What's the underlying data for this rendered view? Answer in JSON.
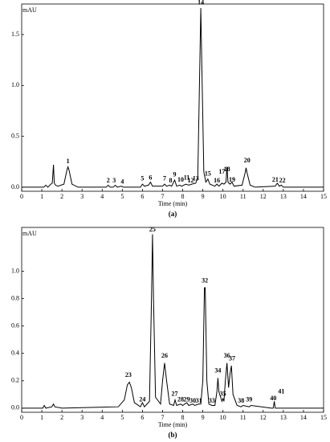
{
  "chart_data": [
    {
      "type": "line",
      "ylabel": "mAU",
      "xlabel": "Time (min)",
      "caption": "(a)",
      "color": "#000000",
      "xlim": [
        0,
        15
      ],
      "ylim": [
        -0.04,
        1.8
      ],
      "xticks": [
        0,
        1,
        2,
        3,
        4,
        5,
        6,
        7,
        8,
        9,
        10,
        11,
        12,
        13,
        14,
        15
      ],
      "yticks": [
        {
          "value": 0,
          "label": "0.0"
        },
        0.5,
        {
          "value": 1,
          "label": "1.0"
        },
        1.5
      ],
      "x": [
        0,
        1.1,
        1.2,
        1.3,
        1.45,
        1.52,
        1.58,
        1.62,
        1.68,
        1.8,
        2.1,
        2.25,
        2.3,
        2.35,
        2.5,
        2.8,
        4.2,
        4.3,
        4.4,
        4.55,
        4.65,
        4.75,
        4.95,
        5.05,
        5.9,
        6.0,
        6.1,
        6.3,
        6.4,
        6.5,
        7.0,
        7.1,
        7.2,
        7.35,
        7.45,
        7.6,
        7.7,
        7.85,
        7.95,
        8.15,
        8.3,
        8.45,
        8.65,
        8.75,
        8.85,
        8.9,
        8.95,
        9.05,
        9.15,
        9.25,
        9.35,
        9.6,
        9.7,
        9.8,
        9.95,
        10.05,
        10.15,
        10.2,
        10.25,
        10.35,
        10.45,
        10.55,
        10.95,
        11.1,
        11.15,
        11.2,
        11.35,
        11.6,
        12.6,
        12.7,
        12.8,
        12.9,
        13.0,
        15
      ],
      "values": [
        0,
        0,
        0.02,
        0,
        0.03,
        0.04,
        0.22,
        0.04,
        0.02,
        0.01,
        0.03,
        0.17,
        0.2,
        0.17,
        0.03,
        0,
        0,
        0.02,
        0,
        0,
        0.02,
        0,
        0.01,
        0,
        0,
        0.03,
        0.01,
        0.02,
        0.05,
        0.01,
        0.01,
        0.03,
        0.01,
        0.02,
        0.01,
        0.07,
        0.01,
        0.02,
        0.01,
        0.03,
        0.02,
        0.03,
        0.04,
        0.1,
        1.2,
        1.76,
        1.2,
        0.15,
        0.05,
        0.08,
        0.03,
        0.01,
        0.03,
        0.01,
        0.04,
        0.03,
        0.05,
        0.2,
        0.05,
        0.03,
        0.05,
        0.01,
        0.02,
        0.14,
        0.19,
        0.14,
        0.02,
        0,
        0.01,
        0.04,
        0.01,
        0.02,
        0,
        0
      ],
      "annotations": [
        {
          "text": "1",
          "x": 2.3,
          "y": 0.25
        },
        {
          "text": "2",
          "x": 4.3,
          "y": 0.06
        },
        {
          "text": "3",
          "x": 4.6,
          "y": 0.06
        },
        {
          "text": "4",
          "x": 5.0,
          "y": 0.05
        },
        {
          "text": "5",
          "x": 6.0,
          "y": 0.08
        },
        {
          "text": "6",
          "x": 6.4,
          "y": 0.09
        },
        {
          "text": "7",
          "x": 7.1,
          "y": 0.08
        },
        {
          "text": "8",
          "x": 7.4,
          "y": 0.06
        },
        {
          "text": "9",
          "x": 7.6,
          "y": 0.12
        },
        {
          "text": "10",
          "x": 7.9,
          "y": 0.07
        },
        {
          "text": "11",
          "x": 8.2,
          "y": 0.09
        },
        {
          "text": "12",
          "x": 8.4,
          "y": 0.06
        },
        {
          "text": "13",
          "x": 8.65,
          "y": 0.08
        },
        {
          "text": "14",
          "x": 8.9,
          "y": 1.81
        },
        {
          "text": "15",
          "x": 9.25,
          "y": 0.13
        },
        {
          "text": "16",
          "x": 9.7,
          "y": 0.06
        },
        {
          "text": "17",
          "x": 9.95,
          "y": 0.15
        },
        {
          "text": "18",
          "x": 10.2,
          "y": 0.17
        },
        {
          "text": "19",
          "x": 10.45,
          "y": 0.07
        },
        {
          "text": "20",
          "x": 11.2,
          "y": 0.26
        },
        {
          "text": "21",
          "x": 12.6,
          "y": 0.07
        },
        {
          "text": "22",
          "x": 12.95,
          "y": 0.06
        }
      ]
    },
    {
      "type": "line",
      "ylabel": "mAU",
      "xlabel": "Time (min)",
      "caption": "(b)",
      "color": "#000000",
      "xlim": [
        0,
        15
      ],
      "ylim": [
        -0.03,
        1.32
      ],
      "xticks": [
        0,
        1,
        2,
        3,
        4,
        5,
        6,
        7,
        8,
        9,
        10,
        11,
        12,
        13,
        14,
        15
      ],
      "yticks": [
        {
          "value": 0,
          "label": "0.0"
        },
        0.2,
        0.4,
        0.6,
        0.8,
        {
          "value": 1,
          "label": "1.0"
        }
      ],
      "x": [
        0,
        1.05,
        1.12,
        1.2,
        1.5,
        1.58,
        1.65,
        2.0,
        4.8,
        5.1,
        5.25,
        5.35,
        5.45,
        5.6,
        5.9,
        6.0,
        6.1,
        6.35,
        6.45,
        6.5,
        6.55,
        6.65,
        6.9,
        7.0,
        7.1,
        7.2,
        7.35,
        7.55,
        7.62,
        7.7,
        7.9,
        8.0,
        8.2,
        8.3,
        8.5,
        8.6,
        8.8,
        8.9,
        9.0,
        9.08,
        9.12,
        9.2,
        9.3,
        9.45,
        9.6,
        9.7,
        9.75,
        9.8,
        9.95,
        10.0,
        10.05,
        10.12,
        10.2,
        10.28,
        10.35,
        10.42,
        10.5,
        10.7,
        10.9,
        11.0,
        11.3,
        11.4,
        12.4,
        12.5,
        12.55,
        12.6,
        15
      ],
      "values": [
        0,
        0,
        0.02,
        0,
        0.01,
        0.03,
        0.01,
        0,
        0.01,
        0.06,
        0.17,
        0.19,
        0.15,
        0.04,
        0.01,
        0.04,
        0.01,
        0.05,
        0.8,
        1.27,
        0.8,
        0.08,
        0.03,
        0.2,
        0.33,
        0.2,
        0.03,
        0.02,
        0.06,
        0.02,
        0.03,
        0.02,
        0.04,
        0.02,
        0.03,
        0.02,
        0.03,
        0.03,
        0.2,
        0.88,
        0.88,
        0.2,
        0.03,
        0.02,
        0.02,
        0.12,
        0.22,
        0.12,
        0.05,
        0.07,
        0.05,
        0.2,
        0.33,
        0.15,
        0.25,
        0.31,
        0.1,
        0.02,
        0.01,
        0.02,
        0.01,
        0.02,
        0,
        0,
        0.05,
        0,
        0
      ],
      "annotations": [
        {
          "text": "23",
          "x": 5.3,
          "y": 0.24
        },
        {
          "text": "24",
          "x": 6.0,
          "y": 0.06
        },
        {
          "text": "25",
          "x": 6.5,
          "y": 1.3
        },
        {
          "text": "26",
          "x": 7.1,
          "y": 0.38
        },
        {
          "text": "27",
          "x": 7.6,
          "y": 0.1
        },
        {
          "text": "28",
          "x": 7.9,
          "y": 0.06
        },
        {
          "text": "29",
          "x": 8.2,
          "y": 0.06
        },
        {
          "text": "30",
          "x": 8.5,
          "y": 0.05
        },
        {
          "text": "31",
          "x": 8.8,
          "y": 0.05
        },
        {
          "text": "32",
          "x": 9.1,
          "y": 0.93
        },
        {
          "text": "33",
          "x": 9.45,
          "y": 0.05
        },
        {
          "text": "34",
          "x": 9.75,
          "y": 0.27
        },
        {
          "text": "35",
          "x": 10.0,
          "y": 0.1
        },
        {
          "text": "36",
          "x": 10.2,
          "y": 0.38
        },
        {
          "text": "37",
          "x": 10.45,
          "y": 0.36
        },
        {
          "text": "38",
          "x": 10.9,
          "y": 0.05
        },
        {
          "text": "39",
          "x": 11.3,
          "y": 0.06
        },
        {
          "text": "40",
          "x": 12.5,
          "y": 0.07
        },
        {
          "text": "41",
          "x": 12.9,
          "y": 0.12
        }
      ]
    }
  ]
}
